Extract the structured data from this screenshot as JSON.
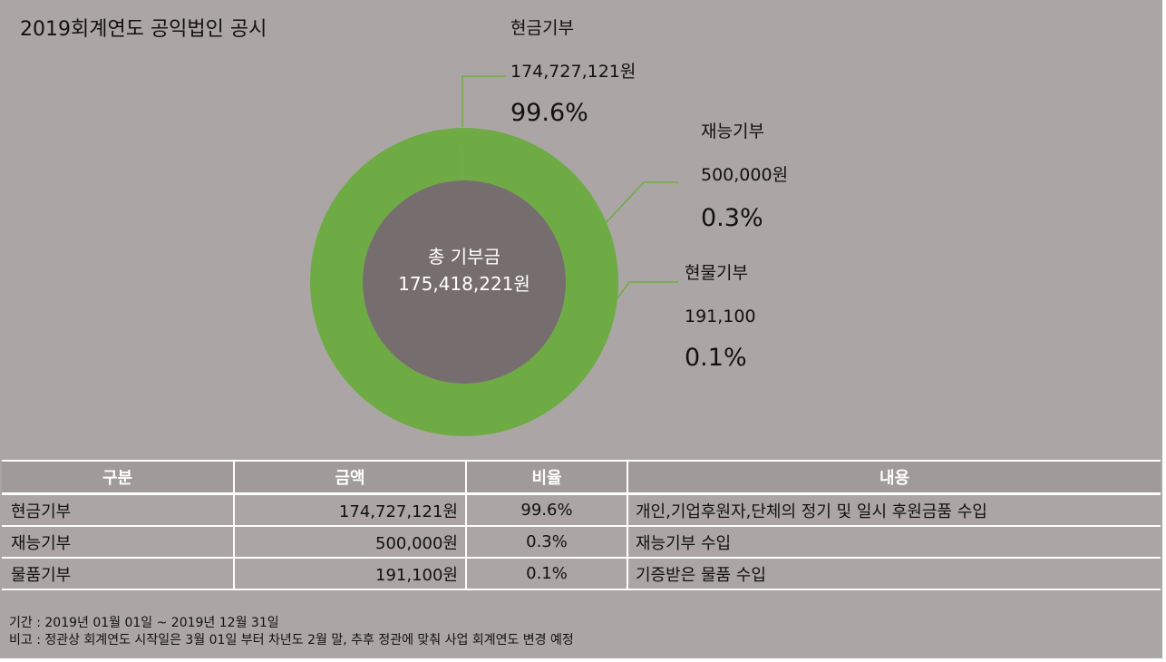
{
  "title": "2019회계연도 공익법인 공시",
  "chart_data": {
    "type": "pie",
    "center_label": "총 기부금",
    "total": "175,418,221원",
    "colors": {
      "ring": "#6fab45",
      "hole": "#766e6e"
    },
    "slices": [
      {
        "label": "현금기부",
        "amount": "174,727,121원",
        "percent": "99.6%",
        "value": 99.6
      },
      {
        "label": "재능기부",
        "amount": "500,000원",
        "percent": "0.3%",
        "value": 0.3
      },
      {
        "label": "현물기부",
        "amount": "191,100",
        "percent": "0.1%",
        "value": 0.1
      }
    ]
  },
  "table": {
    "headers": [
      "구분",
      "금액",
      "비율",
      "내용"
    ],
    "rows": [
      [
        "현금기부",
        "174,727,121원",
        "99.6%",
        "개인,기업후원자,단체의 정기 및 일시 후원금품 수입"
      ],
      [
        "재능기부",
        "500,000원",
        "0.3%",
        "재능기부 수입"
      ],
      [
        "물품기부",
        "191,100원",
        "0.1%",
        "기증받은 물품 수입"
      ]
    ]
  },
  "notes": [
    "기간 : 2019년 01월 01일 ~ 2019년 12월 31일",
    "비고 : 정관상 회계연도 시작일은 3월 01일 부터 차년도 2월 말, 추후 정관에 맞춰 사업 회계연도 변경 예정"
  ]
}
